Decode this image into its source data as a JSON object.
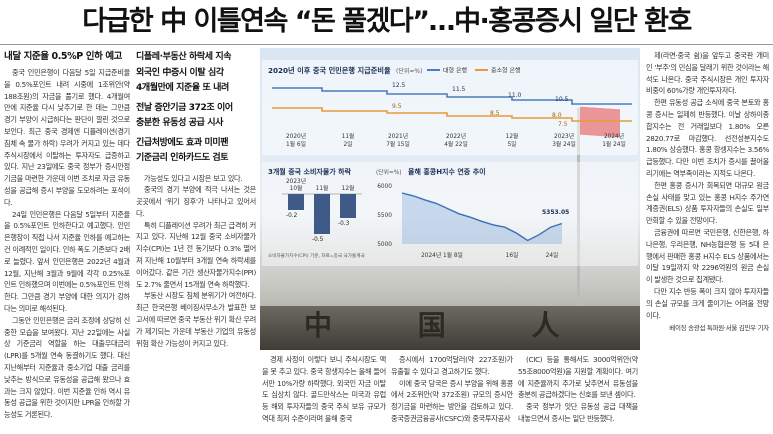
{
  "headline": "다급한 中 이틀연속 “돈 풀겠다”…中·홍콩증시 일단 환호",
  "col1": {
    "subhead": "내달 지준율 0.5%P 인하 예고",
    "paragraphs": [
      "중국 인민은행이 다음달 5일 지급준비율을 0.5%포인트 내려 시중에 1조위안(약 188조원)의 자금을 풀기로 했다. 4개월여 만에 지준율 다시 낮추기로 한 데는 그만큼 경기 부양이 시급하다는 판단이 깔린 것으로 보인다. 최근 중국 경제엔 디플레이션(경기 침체 속 물가 하락) 우려가 커지고 있는 데다 주식시장에서 이탈하는 투자자도 급증하고 있다. 지난 23일에도 중국 정부가 증시안정기금을 마련한 가운데 이번 조치로 자금 유동성을 공급해 증시 부양을 도모하려는 포석이다.",
      "24일 인민은행은 다음달 5일부터 지준율을 0.5%포인트 인하한다고 예고했다. 인민은행장이 직접 나서 지준율 인하를 예고하는 건 이례적인 일이다. 인하 폭도 기존보다 2배로 늘렸다. 앞서 인민은행은 2022년 4월과 12월, 지난해 3월과 9월에 각각 0.25%포인트 인하했으며 이번에는 0.5%포인트 인하한다. 그만큼 경기 부양에 대한 의지가 강하다는 의미로 해석된다.",
      "그동안 인민은행은 금리 조정에 상당히 신중한 모습을 보여왔다. 지난 22일에는 사실상 기준금리 역할을 하는 대출우대금리(LPR)를 5개월 연속 동결하기도 했다. 대신 지난해부터 지준율과 중소기업 대출 금리를 낮추는 방식으로 유동성을 공급해 왔으나 효과는 크지 않았다. 이번 지준율 인하 역시 유동성 공급을 위한 것이지만 LPR을 인하할 가능성도 거론된다."
    ]
  },
  "col2": {
    "deck": [
      "디플레·부동산 하락세 지속",
      "외국인 中증시 이탈 심각",
      "4개월만에 지준율 또 내려",
      "",
      "전날 증안기금 372조 이어",
      "충분한 유동성 공급 시사",
      "",
      "긴급처방에도 효과 미미팬",
      "기준금리 인하카드도 검토"
    ],
    "paragraphs": [
      "가능성도 있다고 시장은 보고 있다.",
      "중국의 경기 부양에 적극 나서는 것은 곳곳에서 '위기 징후'가 나타나고 있어서다.",
      "특히 디플레이션 우려가 최근 급격히 커지고 있다. 지난해 12월 중국 소비자물가지수(CPI)는 1년 전 동기보다 0.3% 떨어져 지난해 10월부터 3개월 연속 하락세를 이어갔다. 같은 기간 생산자물가지수(PPI)도 2.7% 줄면서 15개월 연속 하락했다.",
      "부동산 시장도 침체 분위기가 여전하다. 최근 한국은행 베이징사무소가 발표한 보고서에 따르면 중국 부동산 위기 확산 우려가 제기되는 가운데 부동산 기업의 유동성 위험 확산 가능성이 커지고 있다."
    ]
  },
  "col3": {
    "paragraphs": [
      "경제 사정이 이렇다 보니 주식시장도 맥을 못 추고 있다. 중국 항생지수는 올해 들어서만 10%가량 하락했다. 외국인 자금 이탈도 심상치 않다. 골드만삭스는 미국과 유럽 등 해외 투자자들의 중국 주식 보유 규모가 역대 최저 수준이라며 올해 중국"
    ]
  },
  "col4": {
    "paragraphs": [
      "증시에서 1700억달러(약 227조원)가 유출될 수 있다고 경고하기도 했다.",
      "이에 중국 당국은 증시 부양을 위해 홍콩에서 2조위안(약 372조원) 규모의 증시안정기금을 마련하는 방안을 검토하고 있다. 중국증권금융공사(CSFC)와 중국투자공사"
    ]
  },
  "col5": {
    "paragraphs": [
      "(CIC) 등을 통해서도 3000억위안(약 55조8000억원)을 지원할 계획이다. 여기에 지준율까지 추가로 낮추면서 유동성을 충분히 공급하겠다는 신호를 보낸 셈이다.",
      "중국 정부가 잇단 유동성 공급 대책을 내놓으면서 증시는 일단 반등했다."
    ]
  },
  "col6": {
    "paragraphs": [
      "제(라면·중국 쉼)을 앞두고 중국판 개미인 '부추'의 민심을 달래기 위한 것이라는 해석도 나온다. 중국 주식시장은 개인 투자자 비중이 60%가량 개인투자자다.",
      "한편 유동성 공급 소식에 중국 본토와 홍콩 증시는 일제히 반등했다. 이날 상하이종합지수는 전 거래일보다 1.80% 오른 2820.77로 마감했다. 선전성분지수도 1.80% 상승했다. 홍콩 항셍지수는 3.56% 급등했다. 다만 이번 조치가 증시를 끌어올리기에는 역부족이라는 지적도 나온다.",
      "한편 홍콩 증시가 회복되면 대규모 원금 손실 사태를 맞고 있는 홍콩 H지수 주가연계증권(ELS) 상품 투자자들의 손실도 일부 만회할 수 있을 전망이다.",
      "금융권에 따르면 국민은행, 신한은행, 하나은행, 우리은행, NH농협은행 등 5대 은행에서 판매한 홍콩 H지수 ELS 상품에서는 이달 19일까지 약 2296억원의 원금 손실이 발생한 것으로 집계됐다.",
      "다만 지수 반등 폭이 크지 않아 투자자들의 손실 규모를 크게 줄이기는 어려울 전망이다."
    ],
    "byline": "베이징 송광섭 특파원·서울 김민우 기자"
  },
  "graph1": {
    "title": "2020년 이후 중국 인민은행 지급준비율",
    "unit": "(단위=%)",
    "legend": [
      {
        "label": "대형 은행",
        "color": "#4a7cc0"
      },
      {
        "label": "중소형 은행",
        "color": "#e59b3c"
      }
    ],
    "value_labels": [
      "12.5",
      "11.5",
      "11.0",
      "10.5",
      "9.5",
      "8.5",
      "8.0",
      "7.5"
    ],
    "dates": [
      "2020년\n1월 6일",
      "11월\n2일",
      "2021년\n7월 15일",
      "2022년\n4월 22일",
      "12월\n5일",
      "2023년\n3월 24일",
      "2024년\n1월 24일"
    ],
    "colors": {
      "large": "#4a7cc0",
      "small": "#e59b3c"
    }
  },
  "graph2": {
    "title": "3개월 중국 소비자물가 하락",
    "unit": "(단위=%)",
    "categories": [
      "2023년\n10월",
      "11월",
      "12월"
    ],
    "values": [
      -0.2,
      -0.5,
      -0.3
    ],
    "value_labels": [
      "-0.2",
      "-0.5",
      "-0.3"
    ],
    "source": "소비자물가지수(CPI) 기준, 자료=중국 국가통계국",
    "bar_color": "#3f5a86"
  },
  "graph3": {
    "title": "올해 홍콩H지수 연중 추이",
    "y_ticks": [
      "6000",
      "5500",
      "5000"
    ],
    "x_labels": [
      "2024년 1월 8일",
      "16일",
      "24일"
    ],
    "end_value": "5353.05",
    "points": [
      5880,
      5830,
      5760,
      5700,
      5610,
      5520,
      5460,
      5390,
      5330,
      5290,
      5190,
      5060,
      5160,
      5290,
      5353
    ],
    "color": "#3b6fb6"
  },
  "sign_text": "中 国 人 民 银 行"
}
